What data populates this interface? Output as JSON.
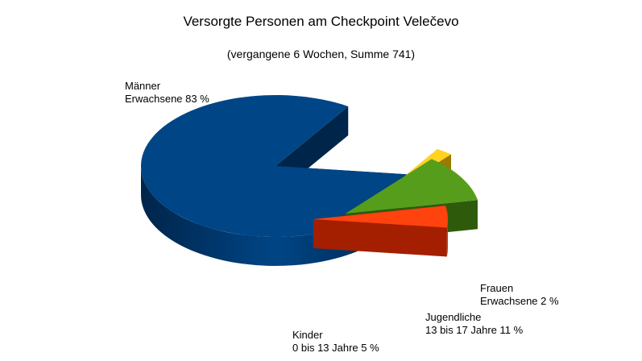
{
  "chart_data": {
    "type": "pie",
    "title": "Versorgte Personen am Checkpoint Velečevo",
    "subtitle": "(vergangene 6 Wochen, Summe 741)",
    "three_d": true,
    "exploded": true,
    "slices": [
      {
        "line1": "Männer",
        "line2": "Erwachsene 83 %",
        "value": 83,
        "color": "#004586",
        "dark": "#00254a"
      },
      {
        "line1": "Frauen",
        "line2": "Erwachsene 2 %",
        "value": 2,
        "color": "#ffd320",
        "dark": "#9a7a00"
      },
      {
        "line1": "Jugendliche",
        "line2": "13 bis 17 Jahre 11 %",
        "value": 11,
        "color": "#579d1c",
        "dark": "#2e5a0c"
      },
      {
        "line1": "Kinder",
        "line2": "0 bis 13 Jahre 5 %",
        "value": 5,
        "color": "#ff420e",
        "dark": "#a31f00"
      }
    ]
  }
}
